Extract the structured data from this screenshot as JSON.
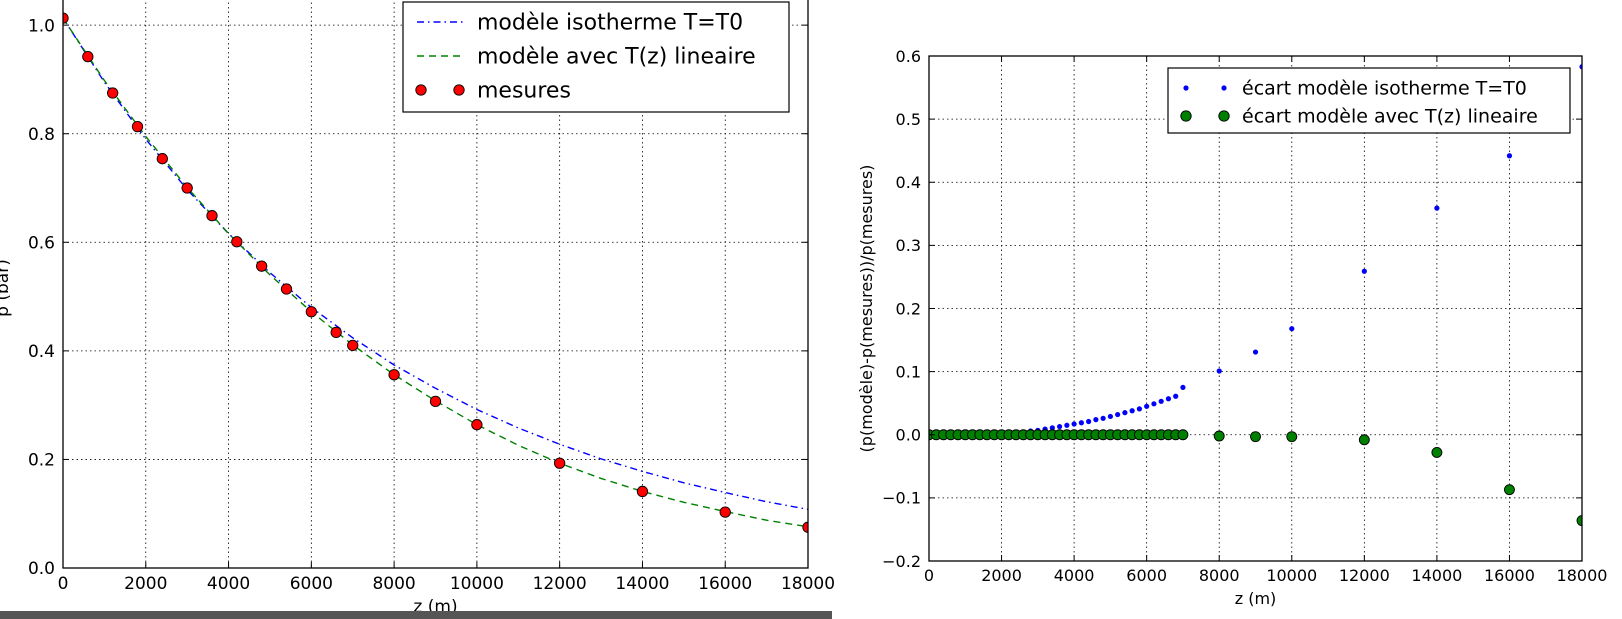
{
  "chart_data": [
    {
      "type": "line",
      "xlabel": "z (m)",
      "ylabel": "p (bar)",
      "xlim": [
        0,
        18000
      ],
      "ylim": [
        0,
        1.05
      ],
      "xticks": [
        0,
        2000,
        4000,
        6000,
        8000,
        10000,
        12000,
        14000,
        16000,
        18000
      ],
      "xtick_labels": [
        "0",
        "2000",
        "4000",
        "6000",
        "8000",
        "10000",
        "12000",
        "14000",
        "16000",
        "18000"
      ],
      "yticks": [
        0.0,
        0.2,
        0.4,
        0.6,
        0.8,
        1.0
      ],
      "ytick_labels": [
        "0.0",
        "0.2",
        "0.4",
        "0.6",
        "0.8",
        "1.0"
      ],
      "grid": true,
      "legend_position": "top-right",
      "series": [
        {
          "name": "modèle isotherme T=T0",
          "style": "dash-dot",
          "color": "#0000ff",
          "x": [
            0,
            1000,
            2000,
            3000,
            4000,
            5000,
            6000,
            7000,
            8000,
            9000,
            10000,
            11000,
            12000,
            13000,
            14000,
            15000,
            16000,
            17000,
            18000
          ],
          "values": [
            1.013,
            0.895,
            0.79,
            0.697,
            0.616,
            0.544,
            0.48,
            0.424,
            0.374,
            0.331,
            0.292,
            0.258,
            0.228,
            0.201,
            0.178,
            0.157,
            0.139,
            0.122,
            0.108
          ]
        },
        {
          "name": "modèle avec T(z) lineaire",
          "style": "dashed",
          "color": "#008000",
          "x": [
            0,
            1000,
            2000,
            3000,
            4000,
            5000,
            6000,
            7000,
            8000,
            9000,
            10000,
            11000,
            12000,
            13000,
            14000,
            15000,
            16000,
            17000,
            18000
          ],
          "values": [
            1.013,
            0.898,
            0.795,
            0.701,
            0.616,
            0.54,
            0.472,
            0.411,
            0.356,
            0.308,
            0.264,
            0.226,
            0.193,
            0.165,
            0.141,
            0.121,
            0.104,
            0.088,
            0.076
          ]
        },
        {
          "name": "mesures",
          "style": "markers",
          "color": "#ff0000",
          "x": [
            0,
            600,
            1200,
            1800,
            2400,
            3000,
            3600,
            4200,
            4800,
            5400,
            6000,
            6600,
            7000,
            8000,
            9000,
            10000,
            12000,
            14000,
            16000,
            18000
          ],
          "values": [
            1.013,
            0.942,
            0.875,
            0.813,
            0.754,
            0.7,
            0.649,
            0.601,
            0.556,
            0.514,
            0.472,
            0.434,
            0.41,
            0.356,
            0.307,
            0.264,
            0.193,
            0.141,
            0.103,
            0.075
          ]
        }
      ]
    },
    {
      "type": "scatter",
      "xlabel": "z (m)",
      "ylabel": "(p(modèle)-p(mesures))/p(mesures)",
      "xlim": [
        0,
        18000
      ],
      "ylim": [
        -0.2,
        0.6
      ],
      "xticks": [
        0,
        2000,
        4000,
        6000,
        8000,
        10000,
        12000,
        14000,
        16000,
        18000
      ],
      "xtick_labels": [
        "0",
        "2000",
        "4000",
        "6000",
        "8000",
        "10000",
        "12000",
        "14000",
        "16000",
        "18000"
      ],
      "yticks": [
        -0.2,
        -0.1,
        0.0,
        0.1,
        0.2,
        0.3,
        0.4,
        0.5,
        0.6
      ],
      "ytick_labels": [
        "−0.2",
        "−0.1",
        "0.0",
        "0.1",
        "0.2",
        "0.3",
        "0.4",
        "0.5",
        "0.6"
      ],
      "grid": true,
      "legend_position": "top-right",
      "series": [
        {
          "name": "écart modèle isotherme T=T0",
          "style": "small-dots",
          "color": "#0000ff",
          "x": [
            0,
            200,
            400,
            600,
            800,
            1000,
            1200,
            1400,
            1600,
            1800,
            2000,
            2200,
            2400,
            2600,
            2800,
            3000,
            3200,
            3400,
            3600,
            3800,
            4000,
            4200,
            4400,
            4600,
            4800,
            5000,
            5200,
            5400,
            5600,
            5800,
            6000,
            6200,
            6400,
            6600,
            6800,
            7000,
            8000,
            9000,
            10000,
            12000,
            14000,
            16000,
            18000
          ],
          "values": [
            0.0,
            0.0,
            0.0,
            0.0,
            0.0,
            0.0,
            0.0,
            0.0,
            0.0,
            0.0,
            0.001,
            0.002,
            0.003,
            0.004,
            0.006,
            0.007,
            0.009,
            0.011,
            0.013,
            0.015,
            0.017,
            0.019,
            0.021,
            0.024,
            0.026,
            0.029,
            0.032,
            0.035,
            0.038,
            0.041,
            0.045,
            0.049,
            0.053,
            0.057,
            0.061,
            0.075,
            0.101,
            0.131,
            0.168,
            0.259,
            0.359,
            0.442,
            0.583
          ]
        },
        {
          "name": "écart modèle avec T(z) lineaire",
          "style": "large-dots",
          "color": "#008000",
          "x": [
            0,
            200,
            400,
            600,
            800,
            1000,
            1200,
            1400,
            1600,
            1800,
            2000,
            2200,
            2400,
            2600,
            2800,
            3000,
            3200,
            3400,
            3600,
            3800,
            4000,
            4200,
            4400,
            4600,
            4800,
            5000,
            5200,
            5400,
            5600,
            5800,
            6000,
            6200,
            6400,
            6600,
            6800,
            7000,
            8000,
            9000,
            10000,
            12000,
            14000,
            16000,
            18000
          ],
          "values": [
            0.0,
            0.0,
            0.0,
            0.0,
            0.0,
            0.0,
            0.0,
            0.0,
            0.0,
            0.0,
            0.0,
            0.0,
            0.0,
            0.0,
            0.0,
            0.0,
            0.0,
            0.0,
            0.0,
            0.0,
            0.0,
            0.0,
            0.0,
            0.0,
            0.0,
            0.0,
            0.0,
            0.0,
            0.0,
            0.0,
            0.0,
            0.0,
            0.0,
            0.0,
            0.0,
            0.0,
            -0.002,
            -0.003,
            -0.003,
            -0.008,
            -0.028,
            -0.087,
            -0.136
          ]
        }
      ]
    }
  ]
}
